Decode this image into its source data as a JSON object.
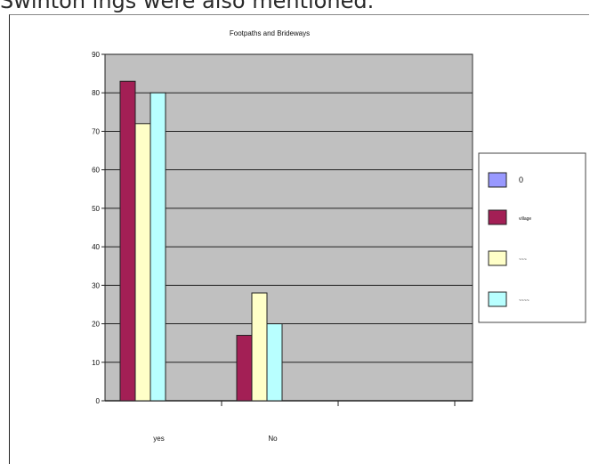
{
  "caption_text": "Swinton ings were also mentioned.",
  "chart_data": {
    "type": "bar",
    "title": "Footpaths and Brideways",
    "xlabel": "",
    "ylabel": "",
    "categories": [
      "yes",
      "No"
    ],
    "ylim": [
      0,
      90
    ],
    "yticks": [
      0,
      10,
      20,
      30,
      40,
      50,
      60,
      70,
      80,
      90
    ],
    "grid": true,
    "legend_position": "right",
    "series": [
      {
        "name": "0",
        "color": "#9999ff",
        "values": [
          0,
          0
        ]
      },
      {
        "name": "illegible",
        "color": "#a31f55",
        "values": [
          83,
          17
        ]
      },
      {
        "name": "illegible",
        "color": "#ffffc8",
        "values": [
          72,
          28
        ]
      },
      {
        "name": "illegible",
        "color": "#b8ffff",
        "values": [
          80,
          20
        ]
      }
    ],
    "legend_labels": [
      "0",
      "village",
      "~~~",
      "~~~~"
    ],
    "plot_background": "#c0c0c0"
  }
}
